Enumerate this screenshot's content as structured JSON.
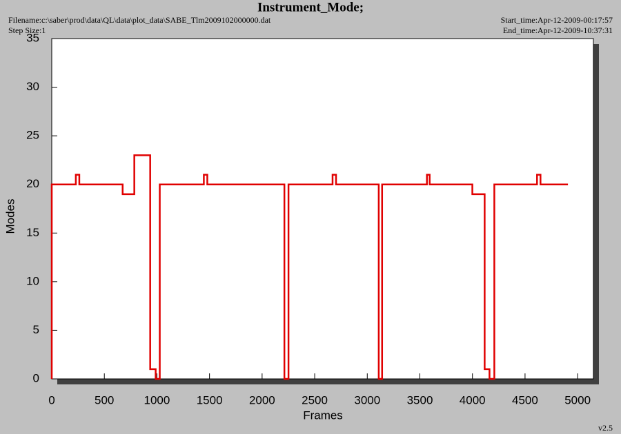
{
  "chart_data": {
    "type": "line",
    "title": "Instrument_Mode;",
    "filename": "Filename:c:\\saber\\prod\\data\\QL\\data\\plot_data\\SABE_Tlm2009102000000.dat",
    "step_size": "Step Size:1",
    "start_time": "Start_time:Apr-12-2009-00:17:57",
    "end_time": "End_time:Apr-12-2009-10:37:31",
    "version": "v2.5",
    "x_label": "Frames",
    "y_label": "Modes",
    "x": [
      0,
      0,
      229,
      229,
      262,
      262,
      674,
      674,
      785,
      785,
      936,
      936,
      988,
      988,
      1027,
      1027,
      1446,
      1446,
      1479,
      1479,
      2212,
      2212,
      2251,
      2251,
      2670,
      2670,
      2703,
      2703,
      3109,
      3109,
      3141,
      3141,
      3567,
      3567,
      3593,
      3593,
      3999,
      3999,
      4116,
      4116,
      4162,
      4162,
      4208,
      4208,
      4614,
      4614,
      4647,
      4647,
      4908
    ],
    "series": [
      {
        "color": "#e00000",
        "values": [
          0,
          20,
          20,
          21,
          21,
          20,
          20,
          19,
          19,
          23,
          23,
          1,
          1,
          0,
          0,
          20,
          20,
          21,
          21,
          20,
          20,
          0,
          0,
          20,
          20,
          21,
          21,
          20,
          20,
          0,
          0,
          20,
          20,
          21,
          21,
          20,
          20,
          19,
          19,
          1,
          1,
          0,
          0,
          20,
          20,
          21,
          21,
          20,
          20
        ]
      }
    ],
    "xlim": [
      0,
      5150
    ],
    "xticks": [
      0,
      500,
      1000,
      1500,
      2000,
      2500,
      3000,
      3500,
      4000,
      4500,
      5000
    ],
    "ylim": [
      0,
      35
    ],
    "yticks": [
      0,
      5,
      10,
      15,
      20,
      25,
      30,
      35
    ]
  }
}
